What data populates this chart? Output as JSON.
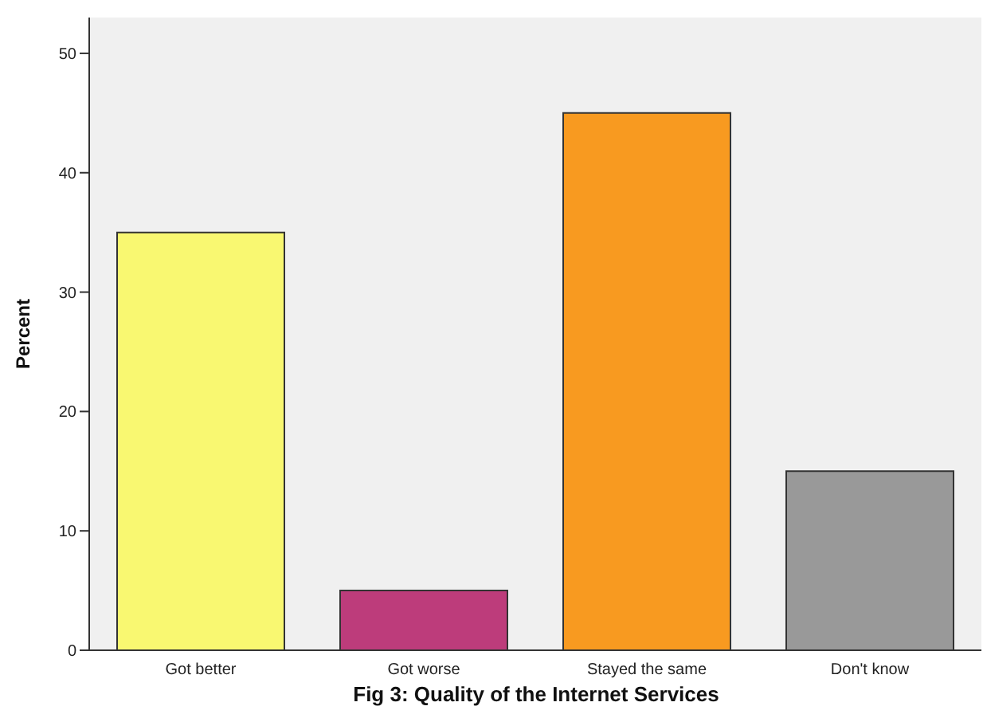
{
  "chart_data": {
    "type": "bar",
    "title": "Fig 3: Quality of the Internet Services",
    "ylabel": "Percent",
    "categories": [
      "Got better",
      "Got worse",
      "Stayed the same",
      "Don't know"
    ],
    "values": [
      35,
      5,
      45,
      15
    ],
    "colors": [
      "#f9f871",
      "#bd3c7b",
      "#f89a20",
      "#999999"
    ],
    "ylim": [
      0,
      53
    ],
    "yticks": [
      0,
      10,
      20,
      30,
      40,
      50
    ],
    "grid": false
  }
}
